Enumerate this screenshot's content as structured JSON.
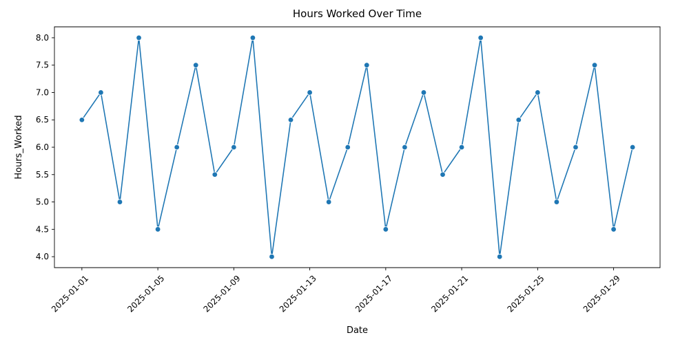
{
  "chart_data": {
    "type": "line",
    "title": "Hours Worked Over Time",
    "xlabel": "Date",
    "ylabel": "Hours_Worked",
    "x": [
      "2025-01-01",
      "2025-01-02",
      "2025-01-03",
      "2025-01-04",
      "2025-01-05",
      "2025-01-06",
      "2025-01-07",
      "2025-01-08",
      "2025-01-09",
      "2025-01-10",
      "2025-01-11",
      "2025-01-12",
      "2025-01-13",
      "2025-01-14",
      "2025-01-15",
      "2025-01-16",
      "2025-01-17",
      "2025-01-18",
      "2025-01-19",
      "2025-01-20",
      "2025-01-21",
      "2025-01-22",
      "2025-01-23",
      "2025-01-24",
      "2025-01-25",
      "2025-01-26",
      "2025-01-27",
      "2025-01-28",
      "2025-01-29",
      "2025-01-30"
    ],
    "series": [
      {
        "color": "#1f77b4",
        "values": [
          6.5,
          7.0,
          5.0,
          8.0,
          4.5,
          6.0,
          7.5,
          5.5,
          6.0,
          8.0,
          4.0,
          6.5,
          7.0,
          5.0,
          6.0,
          7.5,
          4.5,
          6.0,
          7.0,
          5.5,
          6.0,
          8.0,
          4.0,
          6.5,
          7.0,
          5.0,
          6.0,
          7.5,
          4.5,
          6.0
        ]
      }
    ],
    "xticks": [
      "2025-01-01",
      "2025-01-05",
      "2025-01-09",
      "2025-01-13",
      "2025-01-17",
      "2025-01-21",
      "2025-01-25",
      "2025-01-29"
    ],
    "yticks": [
      "4.0",
      "4.5",
      "5.0",
      "5.5",
      "6.0",
      "6.5",
      "7.0",
      "7.5",
      "8.0"
    ],
    "ylim": [
      3.8,
      8.2
    ],
    "xlim": [
      "2024-12-30T13:18",
      "2025-01-31T10:42"
    ],
    "grid": false,
    "legend": "none",
    "x_tick_rotation_deg": 45,
    "markers": "circle"
  }
}
